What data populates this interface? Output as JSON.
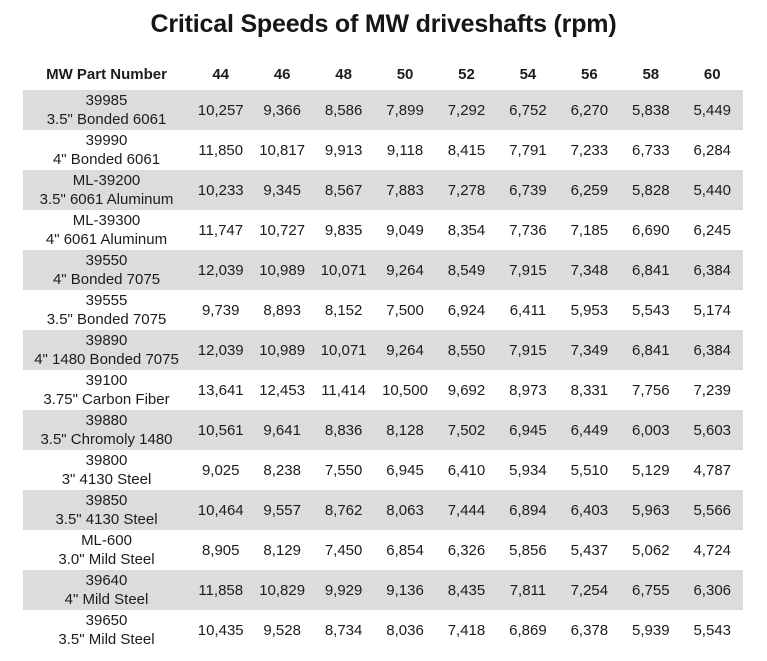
{
  "title": "Critical Speeds of MW driveshafts (rpm)",
  "colors": {
    "stripe": "#dcdcdc",
    "background": "#ffffff",
    "text": "#1c1c1c"
  },
  "table": {
    "columns": [
      "MW Part Number",
      "44",
      "46",
      "48",
      "50",
      "52",
      "54",
      "56",
      "58",
      "60"
    ],
    "rows": [
      {
        "part": "39985",
        "description": "3.5\" Bonded 6061",
        "values": [
          "10,257",
          "9,366",
          "8,586",
          "7,899",
          "7,292",
          "6,752",
          "6,270",
          "5,838",
          "5,449"
        ]
      },
      {
        "part": "39990",
        "description": "4\" Bonded 6061",
        "values": [
          "11,850",
          "10,817",
          "9,913",
          "9,118",
          "8,415",
          "7,791",
          "7,233",
          "6,733",
          "6,284"
        ]
      },
      {
        "part": "ML-39200",
        "description": "3.5\" 6061 Aluminum",
        "values": [
          "10,233",
          "9,345",
          "8,567",
          "7,883",
          "7,278",
          "6,739",
          "6,259",
          "5,828",
          "5,440"
        ]
      },
      {
        "part": "ML-39300",
        "description": "4\" 6061 Aluminum",
        "values": [
          "11,747",
          "10,727",
          "9,835",
          "9,049",
          "8,354",
          "7,736",
          "7,185",
          "6,690",
          "6,245"
        ]
      },
      {
        "part": "39550",
        "description": "4\" Bonded 7075",
        "values": [
          "12,039",
          "10,989",
          "10,071",
          "9,264",
          "8,549",
          "7,915",
          "7,348",
          "6,841",
          "6,384"
        ]
      },
      {
        "part": "39555",
        "description": "3.5\" Bonded 7075",
        "values": [
          "9,739",
          "8,893",
          "8,152",
          "7,500",
          "6,924",
          "6,411",
          "5,953",
          "5,543",
          "5,174"
        ]
      },
      {
        "part": "39890",
        "description": "4\" 1480 Bonded 7075",
        "values": [
          "12,039",
          "10,989",
          "10,071",
          "9,264",
          "8,550",
          "7,915",
          "7,349",
          "6,841",
          "6,384"
        ]
      },
      {
        "part": "39100",
        "description": "3.75\" Carbon Fiber",
        "values": [
          "13,641",
          "12,453",
          "11,414",
          "10,500",
          "9,692",
          "8,973",
          "8,331",
          "7,756",
          "7,239"
        ]
      },
      {
        "part": "39880",
        "description": "3.5\" Chromoly 1480",
        "values": [
          "10,561",
          "9,641",
          "8,836",
          "8,128",
          "7,502",
          "6,945",
          "6,449",
          "6,003",
          "5,603"
        ]
      },
      {
        "part": "39800",
        "description": "3\" 4130 Steel",
        "values": [
          "9,025",
          "8,238",
          "7,550",
          "6,945",
          "6,410",
          "5,934",
          "5,510",
          "5,129",
          "4,787"
        ]
      },
      {
        "part": "39850",
        "description": "3.5\" 4130 Steel",
        "values": [
          "10,464",
          "9,557",
          "8,762",
          "8,063",
          "7,444",
          "6,894",
          "6,403",
          "5,963",
          "5,566"
        ]
      },
      {
        "part": "ML-600",
        "description": "3.0\" Mild Steel",
        "values": [
          "8,905",
          "8,129",
          "7,450",
          "6,854",
          "6,326",
          "5,856",
          "5,437",
          "5,062",
          "4,724"
        ]
      },
      {
        "part": "39640",
        "description": "4\" Mild Steel",
        "values": [
          "11,858",
          "10,829",
          "9,929",
          "9,136",
          "8,435",
          "7,811",
          "7,254",
          "6,755",
          "6,306"
        ]
      },
      {
        "part": "39650",
        "description": "3.5\" Mild Steel",
        "values": [
          "10,435",
          "9,528",
          "8,734",
          "8,036",
          "7,418",
          "6,869",
          "6,378",
          "5,939",
          "5,543"
        ]
      }
    ]
  },
  "chart_data": {
    "type": "table",
    "title": "Critical Speeds of MW driveshafts (rpm)",
    "x_categories_tube_lengths": [
      44,
      46,
      48,
      50,
      52,
      54,
      56,
      58,
      60
    ],
    "row_label_header": "MW Part Number",
    "series": [
      {
        "name": "39985 3.5\" Bonded 6061",
        "values": [
          10257,
          9366,
          8586,
          7899,
          7292,
          6752,
          6270,
          5838,
          5449
        ]
      },
      {
        "name": "39990 4\" Bonded 6061",
        "values": [
          11850,
          10817,
          9913,
          9118,
          8415,
          7791,
          7233,
          6733,
          6284
        ]
      },
      {
        "name": "ML-39200 3.5\" 6061 Aluminum",
        "values": [
          10233,
          9345,
          8567,
          7883,
          7278,
          6739,
          6259,
          5828,
          5440
        ]
      },
      {
        "name": "ML-39300 4\" 6061 Aluminum",
        "values": [
          11747,
          10727,
          9835,
          9049,
          8354,
          7736,
          7185,
          6690,
          6245
        ]
      },
      {
        "name": "39550 4\" Bonded 7075",
        "values": [
          12039,
          10989,
          10071,
          9264,
          8549,
          7915,
          7348,
          6841,
          6384
        ]
      },
      {
        "name": "39555 3.5\" Bonded 7075",
        "values": [
          9739,
          8893,
          8152,
          7500,
          6924,
          6411,
          5953,
          5543,
          5174
        ]
      },
      {
        "name": "39890 4\" 1480 Bonded 7075",
        "values": [
          12039,
          10989,
          10071,
          9264,
          8550,
          7915,
          7349,
          6841,
          6384
        ]
      },
      {
        "name": "39100 3.75\" Carbon Fiber",
        "values": [
          13641,
          12453,
          11414,
          10500,
          9692,
          8973,
          8331,
          7756,
          7239
        ]
      },
      {
        "name": "39880 3.5\" Chromoly 1480",
        "values": [
          10561,
          9641,
          8836,
          8128,
          7502,
          6945,
          6449,
          6003,
          5603
        ]
      },
      {
        "name": "39800 3\" 4130 Steel",
        "values": [
          9025,
          8238,
          7550,
          6945,
          6410,
          5934,
          5510,
          5129,
          4787
        ]
      },
      {
        "name": "39850 3.5\" 4130 Steel",
        "values": [
          10464,
          9557,
          8762,
          8063,
          7444,
          6894,
          6403,
          5963,
          5566
        ]
      },
      {
        "name": "ML-600 3.0\" Mild Steel",
        "values": [
          8905,
          8129,
          7450,
          6854,
          6326,
          5856,
          5437,
          5062,
          4724
        ]
      },
      {
        "name": "39640 4\" Mild Steel",
        "values": [
          11858,
          10829,
          9929,
          9136,
          8435,
          7811,
          7254,
          6755,
          6306
        ]
      },
      {
        "name": "39650 3.5\" Mild Steel",
        "values": [
          10435,
          9528,
          8734,
          8036,
          7418,
          6869,
          6378,
          5939,
          5543
        ]
      }
    ],
    "units": "rpm",
    "layout": {
      "zebra_striping": true,
      "stripe_color": "#dcdcdc",
      "first_row_striped": true
    }
  }
}
